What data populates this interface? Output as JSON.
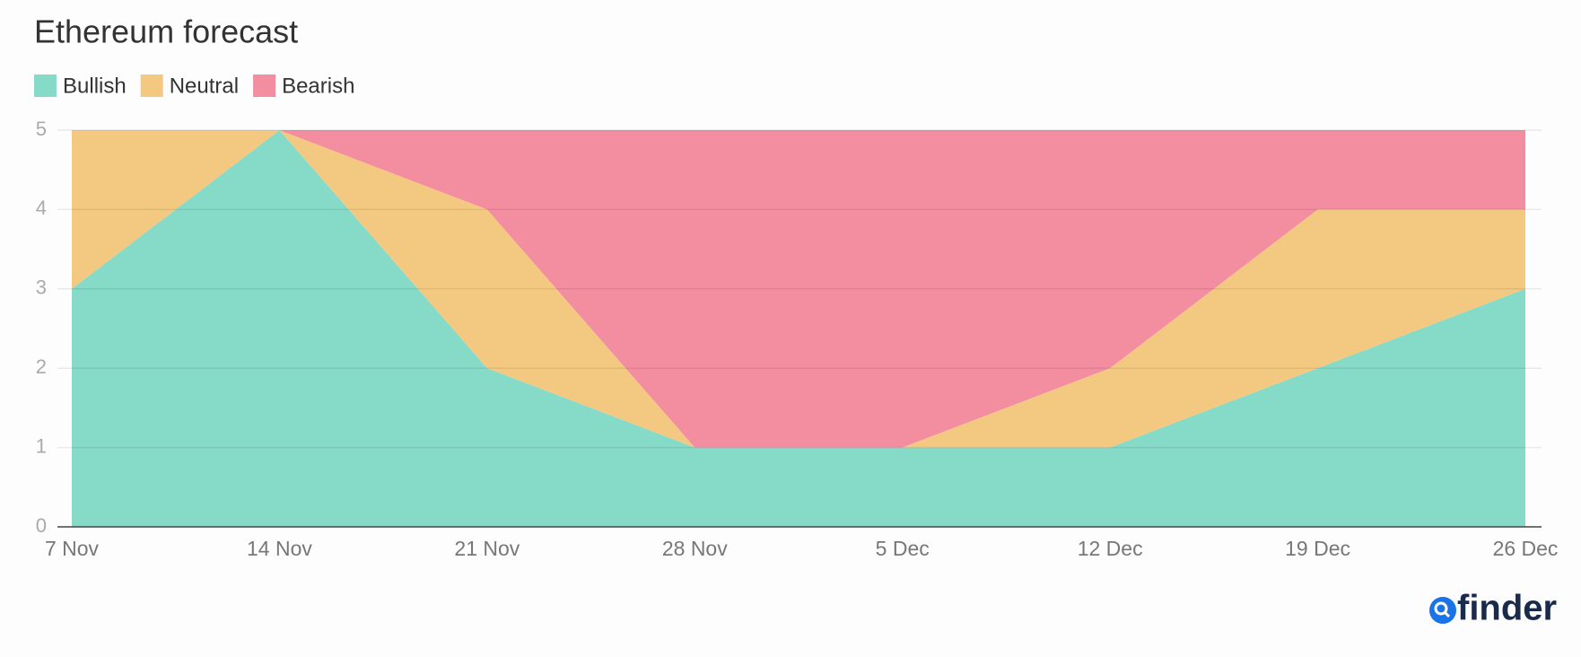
{
  "chart_data": {
    "type": "stacked_area",
    "title": "Ethereum forecast",
    "categories": [
      "7 Nov",
      "14 Nov",
      "21 Nov",
      "28 Nov",
      "5 Dec",
      "12 Dec",
      "19 Dec",
      "26 Dec"
    ],
    "series": [
      {
        "name": "Bullish",
        "color": "#85dbc8",
        "values": [
          3,
          5,
          2,
          1,
          1,
          1,
          2,
          3
        ]
      },
      {
        "name": "Neutral",
        "color": "#f3c982",
        "values": [
          2,
          0,
          2,
          0,
          0,
          1,
          2,
          1
        ]
      },
      {
        "name": "Bearish",
        "color": "#f38da0",
        "values": [
          0,
          0,
          1,
          4,
          4,
          3,
          1,
          1
        ]
      }
    ],
    "ylim": [
      0,
      5
    ],
    "yticks": [
      0,
      1,
      2,
      3,
      4,
      5
    ],
    "grid": true,
    "legend": "top-left",
    "brand": "finder"
  }
}
